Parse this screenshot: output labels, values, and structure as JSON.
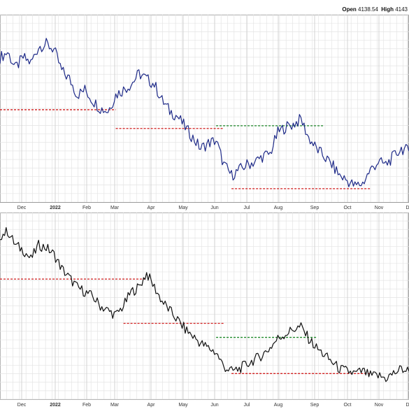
{
  "header": {
    "open_label": "Open",
    "open_value": "4138.54",
    "high_label": "High",
    "high_value": "4143"
  },
  "chart_data": [
    {
      "type": "line",
      "panel": "top",
      "x_tick_labels": [
        "Dec",
        "2022",
        "Feb",
        "Mar",
        "Apr",
        "May",
        "Jun",
        "Jul",
        "Aug",
        "Sep",
        "Oct",
        "Nov",
        "D"
      ],
      "grid": true,
      "line_color": "#1e2a88",
      "x": [
        "Nov 22",
        "Nov 29",
        "Dec 06",
        "Dec 13",
        "Dec 20",
        "Dec 27",
        "Jan 03",
        "Jan 10",
        "Jan 17",
        "Jan 24",
        "Jan 31",
        "Feb 07",
        "Feb 14",
        "Feb 21",
        "Feb 28",
        "Mar 07",
        "Mar 14",
        "Mar 21",
        "Mar 28",
        "Apr 04",
        "Apr 11",
        "Apr 18",
        "Apr 25",
        "May 02",
        "May 09",
        "May 16",
        "May 23",
        "May 30",
        "Jun 06",
        "Jun 13",
        "Jun 20",
        "Jun 27",
        "Jul 04",
        "Jul 11",
        "Jul 18",
        "Jul 25",
        "Aug 01",
        "Aug 08",
        "Aug 15",
        "Aug 22",
        "Aug 29",
        "Sep 05",
        "Sep 12",
        "Sep 19",
        "Sep 26",
        "Oct 03",
        "Oct 10",
        "Oct 17",
        "Oct 24",
        "Oct 31",
        "Nov 07",
        "Nov 14",
        "Nov 21",
        "Nov 28"
      ],
      "values": [
        84,
        86,
        80,
        84,
        82,
        88,
        89,
        87,
        79,
        76,
        70,
        72,
        68,
        65,
        64,
        70,
        72,
        74,
        78,
        76,
        74,
        68,
        64,
        62,
        58,
        54,
        50,
        52,
        53,
        44,
        40,
        42,
        44,
        45,
        47,
        48,
        56,
        58,
        59,
        61,
        54,
        50,
        47,
        44,
        40,
        38,
        36,
        37,
        42,
        45,
        44,
        47,
        50,
        49
      ],
      "y_scale": [
        30,
        100
      ],
      "reference_lines": [
        {
          "color": "#d11f1f",
          "style": "dashed",
          "value": 64.5,
          "x_from": "Nov 22",
          "x_to": "Mar 07"
        },
        {
          "color": "#d11f1f",
          "style": "dashed",
          "value": 57.5,
          "x_from": "Mar 07",
          "x_to": "Jun 13"
        },
        {
          "color": "#1f8a2a",
          "style": "dashed",
          "value": 58.5,
          "x_from": "Jun 06",
          "x_to": "Sep 12"
        },
        {
          "color": "#d11f1f",
          "style": "dashed",
          "value": 35.0,
          "x_from": "Jun 20",
          "x_to": "Oct 24"
        }
      ]
    },
    {
      "type": "line",
      "panel": "bottom",
      "x_tick_labels": [
        "Dec",
        "2022",
        "Feb",
        "Mar",
        "Apr",
        "May",
        "Jun",
        "Jul",
        "Aug",
        "Sep",
        "Oct",
        "Nov",
        "D"
      ],
      "grid": true,
      "line_color": "#111111",
      "x": [
        "Nov 22",
        "Nov 29",
        "Dec 06",
        "Dec 13",
        "Dec 20",
        "Dec 27",
        "Jan 03",
        "Jan 10",
        "Jan 17",
        "Jan 24",
        "Jan 31",
        "Feb 07",
        "Feb 14",
        "Feb 21",
        "Feb 28",
        "Mar 07",
        "Mar 14",
        "Mar 21",
        "Mar 28",
        "Apr 04",
        "Apr 11",
        "Apr 18",
        "Apr 25",
        "May 02",
        "May 09",
        "May 16",
        "May 23",
        "May 30",
        "Jun 06",
        "Jun 13",
        "Jun 20",
        "Jun 27",
        "Jul 04",
        "Jul 11",
        "Jul 18",
        "Jul 25",
        "Aug 01",
        "Aug 08",
        "Aug 15",
        "Aug 22",
        "Aug 29",
        "Sep 05",
        "Sep 12",
        "Sep 19",
        "Sep 26",
        "Oct 03",
        "Oct 10",
        "Oct 17",
        "Oct 24",
        "Oct 31",
        "Nov 07",
        "Nov 14",
        "Nov 21",
        "Nov 28"
      ],
      "values": [
        90,
        92,
        86,
        84,
        80,
        86,
        85,
        82,
        76,
        72,
        68,
        66,
        64,
        60,
        58,
        56,
        60,
        66,
        68,
        74,
        68,
        62,
        58,
        54,
        50,
        47,
        44,
        42,
        40,
        34,
        32,
        33,
        35,
        37,
        39,
        42,
        46,
        48,
        50,
        51,
        46,
        42,
        39,
        36,
        33,
        32,
        31,
        32,
        30,
        30,
        29,
        31,
        33,
        32
      ],
      "y_scale": [
        20,
        100
      ],
      "reference_lines": [
        {
          "color": "#d11f1f",
          "style": "dashed",
          "value": 71.5,
          "x_from": "Nov 22",
          "x_to": "Apr 04"
        },
        {
          "color": "#d11f1f",
          "style": "dashed",
          "value": 52.5,
          "x_from": "Mar 14",
          "x_to": "Jun 13"
        },
        {
          "color": "#1f8a2a",
          "style": "dashed",
          "value": 46.5,
          "x_from": "Jun 06",
          "x_to": "Sep 05"
        },
        {
          "color": "#d11f1f",
          "style": "dashed",
          "value": 31.0,
          "x_from": "Jun 20",
          "x_to": "Oct 24"
        }
      ]
    }
  ]
}
